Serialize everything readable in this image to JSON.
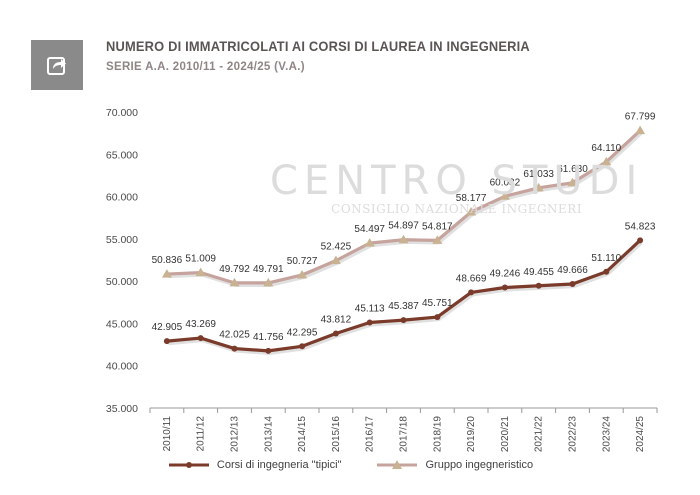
{
  "header": {
    "title": "NUMERO DI IMMATRICOLATI AI CORSI DI LAUREA IN INGEGNERIA",
    "subtitle": "SERIE A.A. 2010/11 - 2024/25  (V.A.)",
    "share_icon": "share-arrow-icon"
  },
  "watermark": {
    "line1": "CENTRO STUDI",
    "line2": "CONSIGLIO NAZIONALE INGEGNERI"
  },
  "colors": {
    "series1": "#7b3b2b",
    "series2": "#c6a49d",
    "series2_marker": "#c9b291",
    "axis": "#9a9a9a",
    "tick_text": "#4a4a4a"
  },
  "chart_data": {
    "type": "line",
    "title": "NUMERO DI IMMATRICOLATI AI CORSI DI LAUREA IN INGEGNERIA",
    "subtitle": "SERIE A.A. 2010/11 - 2024/25  (V.A.)",
    "xlabel": "",
    "ylabel": "",
    "ylim": [
      35000,
      70000
    ],
    "yticks": [
      "35.000",
      "40.000",
      "45.000",
      "50.000",
      "55.000",
      "60.000",
      "65.000",
      "70.000"
    ],
    "ytick_values": [
      35000,
      40000,
      45000,
      50000,
      55000,
      60000,
      65000,
      70000
    ],
    "grid": false,
    "legend_position": "bottom",
    "categories": [
      "2010/11",
      "2011/12",
      "2012/13",
      "2013/14",
      "2014/15",
      "2015/16",
      "2016/17",
      "2017/18",
      "2018/19",
      "2019/20",
      "2020/21",
      "2021/22",
      "2022/23",
      "2023/24",
      "2024/25"
    ],
    "series": [
      {
        "name": "Corsi di ingegneria \"tipici\"",
        "values": [
          42905,
          43269,
          42025,
          41756,
          42295,
          43812,
          45113,
          45387,
          45751,
          48669,
          49246,
          49455,
          49666,
          51110,
          54823
        ],
        "labels": [
          "42.905",
          "43.269",
          "42.025",
          "41.756",
          "42.295",
          "43.812",
          "45.113",
          "45.387",
          "45.751",
          "48.669",
          "49.246",
          "49.455",
          "49.666",
          "51.110",
          "54.823"
        ]
      },
      {
        "name": "Gruppo ingegneristico",
        "values": [
          50836,
          51009,
          49792,
          49791,
          50727,
          52425,
          54497,
          54897,
          54817,
          58177,
          60032,
          61033,
          61630,
          64110,
          67799
        ],
        "labels": [
          "50.836",
          "51.009",
          "49.792",
          "49.791",
          "50.727",
          "52.425",
          "54.497",
          "54.897",
          "54.817",
          "58.177",
          "60.032",
          "61.033",
          "61.630",
          "64.110",
          "67.799"
        ]
      }
    ]
  }
}
